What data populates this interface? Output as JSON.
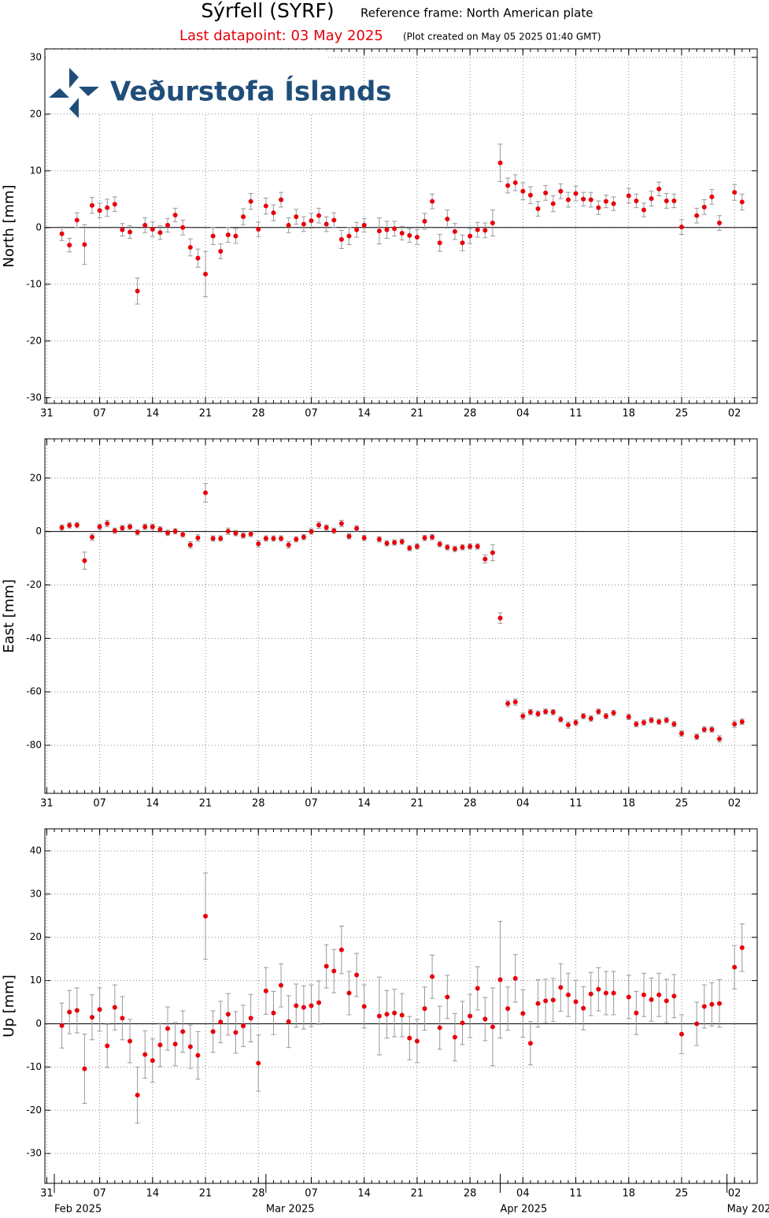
{
  "header": {
    "title": "Sýrfell (SYRF)",
    "subtitle": "Reference frame: North American plate",
    "last_datapoint": "Last datapoint: 03 May 2025",
    "created": "(Plot created on May 05 2025 01:40 GMT)"
  },
  "logo": "Veðurstofa Íslands",
  "chart_data": [
    {
      "type": "scatter",
      "ylabel": "North [mm]",
      "color": "#e8000b",
      "xlim": [
        "2025-01-30T18:00",
        "2025-05-05T00:00"
      ],
      "ylim": [
        -31,
        31.5
      ],
      "yticks": [
        -30,
        -20,
        -10,
        0,
        10,
        20,
        30
      ],
      "grid": true,
      "xticks": [
        {
          "value": "2025-01-31",
          "label": "31"
        },
        {
          "value": "2025-02-07",
          "label": "07"
        },
        {
          "value": "2025-02-14",
          "label": "14"
        },
        {
          "value": "2025-02-21",
          "label": "21"
        },
        {
          "value": "2025-02-28",
          "label": "28"
        },
        {
          "value": "2025-03-07",
          "label": "07"
        },
        {
          "value": "2025-03-14",
          "label": "14"
        },
        {
          "value": "2025-03-21",
          "label": "21"
        },
        {
          "value": "2025-03-28",
          "label": "28"
        },
        {
          "value": "2025-04-04",
          "label": "04"
        },
        {
          "value": "2025-04-11",
          "label": "11"
        },
        {
          "value": "2025-04-18",
          "label": "18"
        },
        {
          "value": "2025-04-25",
          "label": "25"
        },
        {
          "value": "2025-05-02",
          "label": "02"
        }
      ],
      "x": [
        "2025-02-02",
        "2025-02-03",
        "2025-02-04",
        "2025-02-05",
        "2025-02-06",
        "2025-02-07",
        "2025-02-08",
        "2025-02-09",
        "2025-02-10",
        "2025-02-11",
        "2025-02-12",
        "2025-02-13",
        "2025-02-14",
        "2025-02-15",
        "2025-02-16",
        "2025-02-17",
        "2025-02-18",
        "2025-02-19",
        "2025-02-20",
        "2025-02-21",
        "2025-02-22",
        "2025-02-23",
        "2025-02-24",
        "2025-02-25",
        "2025-02-26",
        "2025-02-27",
        "2025-02-28",
        "2025-03-01",
        "2025-03-02",
        "2025-03-03",
        "2025-03-04",
        "2025-03-05",
        "2025-03-06",
        "2025-03-07",
        "2025-03-08",
        "2025-03-09",
        "2025-03-10",
        "2025-03-11",
        "2025-03-12",
        "2025-03-13",
        "2025-03-14",
        "2025-03-16",
        "2025-03-17",
        "2025-03-18",
        "2025-03-19",
        "2025-03-20",
        "2025-03-21",
        "2025-03-22",
        "2025-03-23",
        "2025-03-24",
        "2025-03-25",
        "2025-03-26",
        "2025-03-27",
        "2025-03-28",
        "2025-03-29",
        "2025-03-30",
        "2025-03-31",
        "2025-04-01",
        "2025-04-02",
        "2025-04-03",
        "2025-04-04",
        "2025-04-05",
        "2025-04-06",
        "2025-04-07",
        "2025-04-08",
        "2025-04-09",
        "2025-04-10",
        "2025-04-11",
        "2025-04-12",
        "2025-04-13",
        "2025-04-14",
        "2025-04-15",
        "2025-04-16",
        "2025-04-18",
        "2025-04-19",
        "2025-04-20",
        "2025-04-21",
        "2025-04-22",
        "2025-04-23",
        "2025-04-24",
        "2025-04-25",
        "2025-04-27",
        "2025-04-28",
        "2025-04-29",
        "2025-04-30",
        "2025-05-02",
        "2025-05-03"
      ],
      "values": [
        -1.1,
        -3.1,
        1.3,
        -3,
        3.9,
        3.0,
        3.5,
        4.1,
        -0.4,
        -0.8,
        -11.2,
        0.4,
        -0.3,
        -0.9,
        0.4,
        2.2,
        0,
        -3.5,
        -5.4,
        -8.2,
        -1.5,
        -4.2,
        -1.3,
        -1.5,
        1.9,
        4.6,
        -0.3,
        3.8,
        2.6,
        4.9,
        0.4,
        1.9,
        0.6,
        1.2,
        2.1,
        0.6,
        1.3,
        -2.1,
        -1.5,
        -0.4,
        0.4,
        -0.6,
        -0.4,
        -0.2,
        -1.0,
        -1.4,
        -1.7,
        1.1,
        4.6,
        -2.7,
        1.5,
        -0.7,
        -2.7,
        -1.5,
        -0.4,
        -0.5,
        0.8,
        11.4,
        7.4,
        7.9,
        6.4,
        5.7,
        3.3,
        6.1,
        4.2,
        6.4,
        4.9,
        6.0,
        5.0,
        4.9,
        3.5,
        4.6,
        4.2,
        5.6,
        4.7,
        3.1,
        5.1,
        6.8,
        4.7,
        4.7,
        0.1,
        2.1,
        3.6,
        5.4,
        0.8,
        6.2,
        4.5
      ],
      "errors": [
        1.2,
        1.2,
        1.3,
        3.5,
        1.4,
        1.3,
        1.5,
        1.3,
        1.1,
        1.1,
        2.3,
        1.3,
        1.3,
        1.2,
        1.2,
        1.2,
        1.3,
        1.5,
        1.6,
        4.0,
        1.5,
        1.3,
        1.3,
        1.3,
        1.4,
        1.4,
        1.3,
        1.4,
        1.4,
        1.3,
        1.3,
        1.3,
        1.3,
        1.3,
        1.3,
        1.3,
        1.3,
        1.6,
        1.5,
        1.3,
        1.2,
        2.3,
        1.5,
        1.3,
        1.2,
        1.2,
        1.3,
        1.4,
        1.3,
        1.5,
        1.6,
        1.4,
        1.4,
        1.3,
        1.3,
        1.3,
        2.3,
        3.3,
        1.3,
        1.4,
        1.5,
        1.5,
        1.3,
        1.3,
        1.4,
        1.3,
        1.3,
        1.3,
        1.2,
        1.3,
        1.2,
        1.1,
        1.2,
        1.3,
        1.2,
        1.2,
        1.3,
        1.2,
        1.3,
        1.2,
        1.3,
        1.3,
        1.3,
        1.3,
        1.3,
        1.4,
        1.4
      ]
    },
    {
      "type": "scatter",
      "ylabel": "East [mm]",
      "color": "#e8000b",
      "xlim": [
        "2025-01-30T18:00",
        "2025-05-05T00:00"
      ],
      "ylim": [
        -98,
        34.7
      ],
      "yticks": [
        -80,
        -60,
        -40,
        -20,
        0,
        20
      ],
      "grid": true,
      "xticks": [
        {
          "value": "2025-01-31",
          "label": "31"
        },
        {
          "value": "2025-02-07",
          "label": "07"
        },
        {
          "value": "2025-02-14",
          "label": "14"
        },
        {
          "value": "2025-02-21",
          "label": "21"
        },
        {
          "value": "2025-02-28",
          "label": "28"
        },
        {
          "value": "2025-03-07",
          "label": "07"
        },
        {
          "value": "2025-03-14",
          "label": "14"
        },
        {
          "value": "2025-03-21",
          "label": "21"
        },
        {
          "value": "2025-03-28",
          "label": "28"
        },
        {
          "value": "2025-04-04",
          "label": "04"
        },
        {
          "value": "2025-04-11",
          "label": "11"
        },
        {
          "value": "2025-04-18",
          "label": "18"
        },
        {
          "value": "2025-04-25",
          "label": "25"
        },
        {
          "value": "2025-05-02",
          "label": "02"
        }
      ],
      "x": [
        "2025-02-02",
        "2025-02-03",
        "2025-02-04",
        "2025-02-05",
        "2025-02-06",
        "2025-02-07",
        "2025-02-08",
        "2025-02-09",
        "2025-02-10",
        "2025-02-11",
        "2025-02-12",
        "2025-02-13",
        "2025-02-14",
        "2025-02-15",
        "2025-02-16",
        "2025-02-17",
        "2025-02-18",
        "2025-02-19",
        "2025-02-20",
        "2025-02-21",
        "2025-02-22",
        "2025-02-23",
        "2025-02-24",
        "2025-02-25",
        "2025-02-26",
        "2025-02-27",
        "2025-02-28",
        "2025-03-01",
        "2025-03-02",
        "2025-03-03",
        "2025-03-04",
        "2025-03-05",
        "2025-03-06",
        "2025-03-07",
        "2025-03-08",
        "2025-03-09",
        "2025-03-10",
        "2025-03-11",
        "2025-03-12",
        "2025-03-13",
        "2025-03-14",
        "2025-03-16",
        "2025-03-17",
        "2025-03-18",
        "2025-03-19",
        "2025-03-20",
        "2025-03-21",
        "2025-03-22",
        "2025-03-23",
        "2025-03-24",
        "2025-03-25",
        "2025-03-26",
        "2025-03-27",
        "2025-03-28",
        "2025-03-29",
        "2025-03-30",
        "2025-03-31",
        "2025-04-01",
        "2025-04-02",
        "2025-04-03",
        "2025-04-04",
        "2025-04-05",
        "2025-04-06",
        "2025-04-07",
        "2025-04-08",
        "2025-04-09",
        "2025-04-10",
        "2025-04-11",
        "2025-04-12",
        "2025-04-13",
        "2025-04-14",
        "2025-04-15",
        "2025-04-16",
        "2025-04-18",
        "2025-04-19",
        "2025-04-20",
        "2025-04-21",
        "2025-04-22",
        "2025-04-23",
        "2025-04-24",
        "2025-04-25",
        "2025-04-27",
        "2025-04-28",
        "2025-04-29",
        "2025-04-30",
        "2025-05-02",
        "2025-05-03"
      ],
      "values": [
        1.5,
        2.3,
        2.4,
        -10.9,
        -2.1,
        1.8,
        3.0,
        0.3,
        1.3,
        1.8,
        -0.3,
        1.8,
        1.8,
        0.8,
        -0.5,
        0.1,
        -1.1,
        -5.0,
        -2.4,
        14.5,
        -2.6,
        -2.6,
        0.1,
        -0.6,
        -1.5,
        -0.9,
        -4.6,
        -2.6,
        -2.6,
        -2.6,
        -5.0,
        -2.9,
        -2.1,
        0,
        2.4,
        1.5,
        0.3,
        3.0,
        -1.8,
        1.2,
        -2.4,
        -2.9,
        -4.4,
        -4.1,
        -3.8,
        -6.2,
        -5.6,
        -2.4,
        -2.1,
        -4.7,
        -5.9,
        -6.5,
        -5.9,
        -5.6,
        -5.6,
        -10.3,
        -7.9,
        -32.4,
        -64.4,
        -63.8,
        -69.1,
        -67.6,
        -68.2,
        -67.4,
        -67.6,
        -70.3,
        -72.4,
        -71.5,
        -69.1,
        -70.0,
        -67.4,
        -69.1,
        -67.9,
        -69.4,
        -72.1,
        -71.5,
        -70.6,
        -71.2,
        -70.6,
        -72.1,
        -75.6,
        -76.8,
        -74.1,
        -74.1,
        -77.6,
        -72.1,
        -71.2
      ],
      "errors": [
        1.0,
        1.0,
        1.0,
        3.2,
        1.2,
        1.0,
        1.2,
        1.0,
        1.0,
        1.0,
        1.0,
        1.0,
        1.0,
        1.0,
        1.0,
        1.0,
        1.0,
        1.2,
        1.2,
        3.5,
        1.0,
        1.0,
        1.2,
        1.0,
        1.0,
        1.0,
        1.2,
        1.0,
        1.0,
        1.0,
        1.2,
        1.0,
        1.0,
        1.0,
        1.2,
        1.0,
        1.0,
        1.2,
        1.0,
        1.0,
        1.0,
        1.0,
        1.0,
        1.0,
        1.0,
        1.0,
        1.0,
        1.0,
        1.0,
        1.0,
        1.0,
        1.0,
        1.0,
        1.0,
        1.0,
        1.5,
        3.0,
        2.0,
        1.2,
        1.2,
        1.2,
        1.0,
        1.0,
        1.0,
        1.0,
        1.0,
        1.2,
        1.0,
        1.0,
        1.0,
        1.0,
        1.0,
        1.0,
        1.0,
        1.0,
        1.0,
        1.0,
        1.0,
        1.0,
        1.0,
        1.0,
        1.0,
        1.0,
        1.0,
        1.2,
        1.2,
        1.0
      ]
    },
    {
      "type": "scatter",
      "ylabel": "Up [mm]",
      "color": "#e8000b",
      "xlim": [
        "2025-01-30T18:00",
        "2025-05-05T00:00"
      ],
      "ylim": [
        -36.9,
        45.1
      ],
      "yticks": [
        -30,
        -20,
        -10,
        0,
        10,
        20,
        30,
        40
      ],
      "grid": true,
      "xticks": [
        {
          "value": "2025-01-31",
          "label": "31"
        },
        {
          "value": "2025-02-07",
          "label": "07"
        },
        {
          "value": "2025-02-14",
          "label": "14"
        },
        {
          "value": "2025-02-21",
          "label": "21"
        },
        {
          "value": "2025-02-28",
          "label": "28"
        },
        {
          "value": "2025-03-07",
          "label": "07"
        },
        {
          "value": "2025-03-14",
          "label": "14"
        },
        {
          "value": "2025-03-21",
          "label": "21"
        },
        {
          "value": "2025-03-28",
          "label": "28"
        },
        {
          "value": "2025-04-04",
          "label": "04"
        },
        {
          "value": "2025-04-11",
          "label": "11"
        },
        {
          "value": "2025-04-18",
          "label": "18"
        },
        {
          "value": "2025-04-25",
          "label": "25"
        },
        {
          "value": "2025-05-02",
          "label": "02"
        }
      ],
      "month_ticks": [
        {
          "value": "2025-02-01",
          "label": "Feb 2025"
        },
        {
          "value": "2025-03-01",
          "label": "Mar 2025"
        },
        {
          "value": "2025-04-01",
          "label": "Apr 2025"
        },
        {
          "value": "2025-05-01",
          "label": "May 2025"
        }
      ],
      "x": [
        "2025-02-02",
        "2025-02-03",
        "2025-02-04",
        "2025-02-05",
        "2025-02-06",
        "2025-02-07",
        "2025-02-08",
        "2025-02-09",
        "2025-02-10",
        "2025-02-11",
        "2025-02-12",
        "2025-02-13",
        "2025-02-14",
        "2025-02-15",
        "2025-02-16",
        "2025-02-17",
        "2025-02-18",
        "2025-02-19",
        "2025-02-20",
        "2025-02-21",
        "2025-02-22",
        "2025-02-23",
        "2025-02-24",
        "2025-02-25",
        "2025-02-26",
        "2025-02-27",
        "2025-02-28",
        "2025-03-01",
        "2025-03-02",
        "2025-03-03",
        "2025-03-04",
        "2025-03-05",
        "2025-03-06",
        "2025-03-07",
        "2025-03-08",
        "2025-03-09",
        "2025-03-10",
        "2025-03-11",
        "2025-03-12",
        "2025-03-13",
        "2025-03-14",
        "2025-03-16",
        "2025-03-17",
        "2025-03-18",
        "2025-03-19",
        "2025-03-20",
        "2025-03-21",
        "2025-03-22",
        "2025-03-23",
        "2025-03-24",
        "2025-03-25",
        "2025-03-26",
        "2025-03-27",
        "2025-03-28",
        "2025-03-29",
        "2025-03-30",
        "2025-03-31",
        "2025-04-01",
        "2025-04-02",
        "2025-04-03",
        "2025-04-04",
        "2025-04-05",
        "2025-04-06",
        "2025-04-07",
        "2025-04-08",
        "2025-04-09",
        "2025-04-10",
        "2025-04-11",
        "2025-04-12",
        "2025-04-13",
        "2025-04-14",
        "2025-04-15",
        "2025-04-16",
        "2025-04-18",
        "2025-04-19",
        "2025-04-20",
        "2025-04-21",
        "2025-04-22",
        "2025-04-23",
        "2025-04-24",
        "2025-04-25",
        "2025-04-27",
        "2025-04-28",
        "2025-04-29",
        "2025-04-30",
        "2025-05-02",
        "2025-05-03"
      ],
      "values": [
        -0.4,
        2.7,
        3.1,
        -10.4,
        1.5,
        3.3,
        -5.1,
        3.8,
        1.3,
        -4.0,
        -16.5,
        -7.1,
        -8.5,
        -4.9,
        -1.1,
        -4.7,
        -1.8,
        -5.3,
        -7.3,
        24.9,
        -1.8,
        0.4,
        2.2,
        -2.0,
        -0.5,
        1.3,
        -9.1,
        7.6,
        2.5,
        8.9,
        0.5,
        4.2,
        3.8,
        4.2,
        4.9,
        13.3,
        12.2,
        17.1,
        7.1,
        11.3,
        4.0,
        1.8,
        2.2,
        2.5,
        2.0,
        -3.3,
        -4.0,
        3.5,
        10.9,
        -0.9,
        6.2,
        -3.1,
        0.2,
        1.8,
        8.2,
        1.1,
        -0.7,
        10.2,
        3.5,
        10.5,
        2.4,
        -4.5,
        4.7,
        5.3,
        5.5,
        8.4,
        6.7,
        5.1,
        3.6,
        6.9,
        8.0,
        7.1,
        7.1,
        6.2,
        2.5,
        6.7,
        5.6,
        6.7,
        5.3,
        6.4,
        -2.4,
        0,
        4.0,
        4.5,
        4.7,
        13.1,
        17.6
      ],
      "errors": [
        5.2,
        5.0,
        5.2,
        8.0,
        5.2,
        5.0,
        5.0,
        5.2,
        5.0,
        5.0,
        6.5,
        5.5,
        5.0,
        5.0,
        5.0,
        5.0,
        4.8,
        5.0,
        5.5,
        10.0,
        4.8,
        4.8,
        4.8,
        4.8,
        4.8,
        5.5,
        6.5,
        5.4,
        5.0,
        5.0,
        6.0,
        5.0,
        5.0,
        4.8,
        5.0,
        5.0,
        5.0,
        5.5,
        5.0,
        5.0,
        5.0,
        9.0,
        5.5,
        5.5,
        5.0,
        5.0,
        5.0,
        5.0,
        5.0,
        5.0,
        5.0,
        5.5,
        5.0,
        5.0,
        5.0,
        5.0,
        9.0,
        13.5,
        5.0,
        5.5,
        5.5,
        5.0,
        5.5,
        5.0,
        5.0,
        5.5,
        5.0,
        5.0,
        5.0,
        5.0,
        5.0,
        5.0,
        5.0,
        5.0,
        5.0,
        5.0,
        5.0,
        5.0,
        5.0,
        5.0,
        4.5,
        5.0,
        5.0,
        5.0,
        5.5,
        5.0,
        5.5
      ]
    }
  ]
}
